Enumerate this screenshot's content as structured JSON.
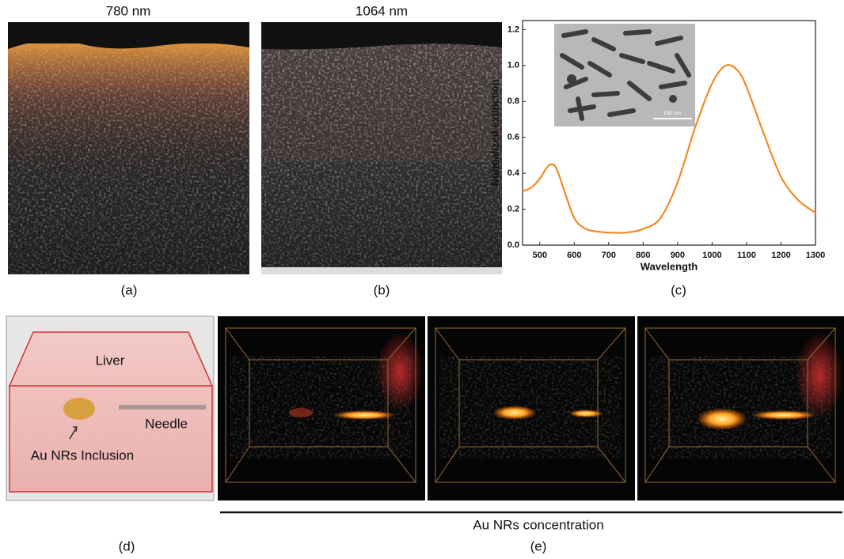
{
  "panels": {
    "a": {
      "title": "780 nm",
      "label": "(a)"
    },
    "b": {
      "title": "1064 nm",
      "label": "(b)"
    },
    "c": {
      "label": "(c)"
    },
    "d": {
      "label": "(d)",
      "liver": "Liver",
      "needle": "Needle",
      "inclusion": "Au NRs Inclusion"
    },
    "e": {
      "label": "(e)",
      "axis_label": "Au NRs concentration"
    }
  },
  "chart_data": {
    "type": "line",
    "xlabel": "Wavelength",
    "ylabel": "Normalized extinction",
    "inset_scale_label": "100 nm",
    "color": "#f28a24",
    "x": [
      450,
      475,
      500,
      520,
      535,
      550,
      575,
      600,
      625,
      650,
      700,
      750,
      800,
      850,
      900,
      950,
      1000,
      1040,
      1075,
      1100,
      1150,
      1200,
      1250,
      1300
    ],
    "values": [
      0.3,
      0.32,
      0.37,
      0.43,
      0.45,
      0.42,
      0.28,
      0.15,
      0.1,
      0.08,
      0.07,
      0.07,
      0.09,
      0.15,
      0.35,
      0.65,
      0.9,
      1.0,
      0.97,
      0.88,
      0.62,
      0.38,
      0.25,
      0.18
    ],
    "xlim": [
      450,
      1300
    ],
    "ylim": [
      0,
      1.25
    ],
    "xticks": [
      500,
      600,
      700,
      800,
      900,
      1000,
      1100,
      1200,
      1300
    ],
    "yticks": [
      {
        "value": 0,
        "label": "0.0"
      },
      0.2,
      0.4,
      0.6,
      0.8,
      {
        "value": 1,
        "label": "1.0"
      },
      1.2
    ]
  }
}
